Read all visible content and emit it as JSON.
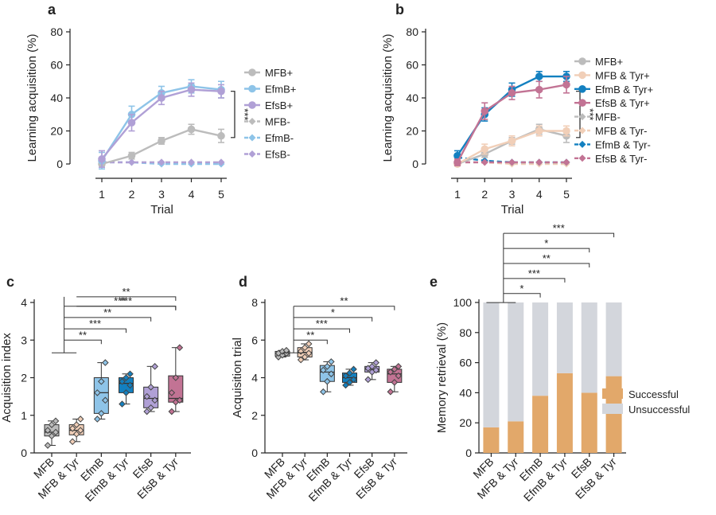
{
  "colors": {
    "gray": "#bcbcbc",
    "lightblue": "#8ec4e8",
    "lavender": "#b0a0d6",
    "peach": "#f1cfb8",
    "blue": "#1380c0",
    "mauve": "#c27394",
    "successful": "#e2a86a",
    "unsuccessful": "#d3d6dc"
  },
  "chart_data": [
    {
      "panel": "a",
      "type": "line",
      "xlabel": "Trial",
      "ylabel": "Learning acquisition (%)",
      "x": [
        1,
        2,
        3,
        4,
        5
      ],
      "xlim": [
        1,
        5
      ],
      "ylim": [
        0,
        80
      ],
      "yticks": [
        0,
        20,
        40,
        60,
        80
      ],
      "series": [
        {
          "name": "MFB+",
          "color": "gray",
          "dashed": false,
          "marker": "circle",
          "values": [
            0,
            5,
            14,
            21,
            17
          ],
          "err": [
            1,
            2,
            2,
            3,
            4
          ]
        },
        {
          "name": "EfmB+",
          "color": "lightblue",
          "dashed": false,
          "marker": "circle",
          "values": [
            2,
            30,
            43,
            47,
            45
          ],
          "err": [
            5,
            5,
            4,
            4,
            5
          ]
        },
        {
          "name": "EfsB+",
          "color": "lavender",
          "dashed": false,
          "marker": "circle",
          "values": [
            3,
            25,
            40,
            45,
            44
          ],
          "err": [
            5,
            5,
            4,
            4,
            4
          ]
        },
        {
          "name": "MFB-",
          "color": "gray",
          "dashed": true,
          "marker": "diamond",
          "values": [
            1,
            1,
            1,
            1,
            1
          ],
          "err": [
            0,
            0,
            0,
            0,
            0
          ]
        },
        {
          "name": "EfmB-",
          "color": "lightblue",
          "dashed": true,
          "marker": "diamond",
          "values": [
            1,
            1,
            0,
            0,
            0
          ],
          "err": [
            0,
            0,
            0,
            0,
            0
          ]
        },
        {
          "name": "EfsB-",
          "color": "lavender",
          "dashed": true,
          "marker": "diamond",
          "values": [
            1,
            1,
            1,
            1,
            1
          ],
          "err": [
            0,
            0,
            0,
            0,
            0
          ]
        }
      ],
      "significance": "***"
    },
    {
      "panel": "b",
      "type": "line",
      "xlabel": "Trial",
      "ylabel": "Learning acquisition (%)",
      "x": [
        1,
        2,
        3,
        4,
        5
      ],
      "xlim": [
        1,
        5
      ],
      "ylim": [
        0,
        80
      ],
      "yticks": [
        0,
        20,
        40,
        60,
        80
      ],
      "series": [
        {
          "name": "MFB+",
          "color": "gray",
          "dashed": false,
          "marker": "circle",
          "values": [
            0,
            6,
            14,
            21,
            17
          ],
          "err": [
            1,
            2,
            2,
            3,
            4
          ]
        },
        {
          "name": "MFB & Tyr+",
          "color": "peach",
          "dashed": false,
          "marker": "circle",
          "values": [
            0,
            9,
            14,
            20,
            20
          ],
          "err": [
            1,
            3,
            3,
            3,
            3
          ]
        },
        {
          "name": "EfmB & Tyr+",
          "color": "blue",
          "dashed": false,
          "marker": "circle",
          "values": [
            5,
            30,
            45,
            53,
            53
          ],
          "err": [
            3,
            4,
            4,
            3,
            3
          ]
        },
        {
          "name": "EfsB & Tyr+",
          "color": "mauve",
          "dashed": false,
          "marker": "circle",
          "values": [
            1,
            32,
            43,
            45,
            48
          ],
          "err": [
            2,
            5,
            4,
            5,
            5
          ]
        },
        {
          "name": "MFB-",
          "color": "gray",
          "dashed": true,
          "marker": "diamond",
          "values": [
            1,
            1,
            1,
            1,
            1
          ],
          "err": [
            0,
            0,
            0,
            0,
            0
          ]
        },
        {
          "name": "MFB & Tyr-",
          "color": "peach",
          "dashed": true,
          "marker": "diamond",
          "values": [
            1,
            1,
            0,
            0,
            0
          ],
          "err": [
            0,
            0,
            0,
            0,
            0
          ]
        },
        {
          "name": "EfmB & Tyr-",
          "color": "blue",
          "dashed": true,
          "marker": "diamond",
          "values": [
            4,
            2,
            1,
            1,
            1
          ],
          "err": [
            0,
            0,
            0,
            0,
            0
          ]
        },
        {
          "name": "EfsB & Tyr-",
          "color": "mauve",
          "dashed": true,
          "marker": "diamond",
          "values": [
            1,
            1,
            1,
            1,
            1
          ],
          "err": [
            0,
            0,
            0,
            0,
            0
          ]
        }
      ],
      "significance": "***"
    },
    {
      "panel": "c",
      "type": "box",
      "ylabel": "Acquisition index",
      "ylim": [
        0,
        4
      ],
      "yticks": [
        0,
        1,
        2,
        3,
        4
      ],
      "categories": [
        "MFB",
        "MFB & Tyr",
        "EfmB",
        "EfmB & Tyr",
        "EfsB",
        "EfsB & Tyr"
      ],
      "category_colors": [
        "gray",
        "peach",
        "lightblue",
        "blue",
        "lavender",
        "mauve"
      ],
      "boxes": [
        {
          "min": 0.2,
          "q1": 0.45,
          "median": 0.55,
          "q3": 0.75,
          "max": 0.85,
          "points": [
            0.2,
            0.45,
            0.55,
            0.6,
            0.75,
            0.85
          ]
        },
        {
          "min": 0.3,
          "q1": 0.48,
          "median": 0.6,
          "q3": 0.75,
          "max": 0.9,
          "points": [
            0.3,
            0.5,
            0.6,
            0.65,
            0.75,
            0.9
          ]
        },
        {
          "min": 0.9,
          "q1": 1.05,
          "median": 1.6,
          "q3": 2.0,
          "max": 2.4,
          "points": [
            0.9,
            1.05,
            1.4,
            1.6,
            1.9,
            2.4
          ]
        },
        {
          "min": 1.3,
          "q1": 1.6,
          "median": 1.85,
          "q3": 2.0,
          "max": 2.1,
          "points": [
            1.3,
            1.6,
            1.8,
            1.9,
            2.0,
            2.1
          ]
        },
        {
          "min": 1.1,
          "q1": 1.2,
          "median": 1.45,
          "q3": 1.75,
          "max": 2.3,
          "points": [
            1.1,
            1.2,
            1.4,
            1.5,
            1.75,
            2.3
          ]
        },
        {
          "min": 1.1,
          "q1": 1.35,
          "median": 1.45,
          "q3": 2.05,
          "max": 2.8,
          "points": [
            1.1,
            1.35,
            1.4,
            1.6,
            2.0,
            2.8
          ]
        }
      ],
      "comparisons": [
        {
          "from": "MFB",
          "to": "EfmB",
          "label": "**",
          "level": 3.0
        },
        {
          "from": "MFB",
          "to": "EfmB & Tyr",
          "label": "***",
          "level": 3.3
        },
        {
          "from": "MFB",
          "to": "EfsB",
          "label": "**",
          "level": 3.6
        },
        {
          "from": "MFB",
          "to": "EfsB & Tyr",
          "label": "***",
          "level": 3.9
        },
        {
          "from": "MFB & Tyr",
          "to": "EfsB & Tyr",
          "label": "**",
          "level": 4.15
        },
        {
          "from": "MFB & Tyr",
          "to": "EfsB & Tyr",
          "label": "***",
          "level": 3.9
        }
      ]
    },
    {
      "panel": "d",
      "type": "box",
      "ylabel": "Acquisition trial",
      "ylim": [
        0,
        8
      ],
      "yticks": [
        0,
        2,
        4,
        6,
        8
      ],
      "categories": [
        "MFB",
        "MFB & Tyr",
        "EfmB",
        "EfmB & Tyr",
        "EfsB",
        "EfsB & Tyr"
      ],
      "category_colors": [
        "gray",
        "peach",
        "lightblue",
        "blue",
        "lavender",
        "mauve"
      ],
      "boxes": [
        {
          "min": 5.1,
          "q1": 5.15,
          "median": 5.3,
          "q3": 5.4,
          "max": 5.45,
          "points": [
            5.1,
            5.2,
            5.3,
            5.3,
            5.4,
            5.45
          ]
        },
        {
          "min": 4.95,
          "q1": 5.1,
          "median": 5.35,
          "q3": 5.6,
          "max": 5.8,
          "points": [
            4.95,
            5.1,
            5.3,
            5.4,
            5.6,
            5.8
          ]
        },
        {
          "min": 3.25,
          "q1": 3.8,
          "median": 4.3,
          "q3": 4.65,
          "max": 4.85,
          "points": [
            3.25,
            3.8,
            4.2,
            4.4,
            4.6,
            4.85
          ]
        },
        {
          "min": 3.6,
          "q1": 3.75,
          "median": 4.0,
          "q3": 4.25,
          "max": 4.45,
          "points": [
            3.6,
            3.75,
            3.9,
            4.1,
            4.25,
            4.45
          ]
        },
        {
          "min": 3.9,
          "q1": 4.3,
          "median": 4.45,
          "q3": 4.6,
          "max": 4.8,
          "points": [
            3.9,
            4.3,
            4.4,
            4.5,
            4.6,
            4.8
          ]
        },
        {
          "min": 3.25,
          "q1": 3.75,
          "median": 4.2,
          "q3": 4.45,
          "max": 4.6,
          "points": [
            3.25,
            3.75,
            4.1,
            4.3,
            4.45,
            4.6
          ]
        }
      ],
      "comparisons": [
        {
          "from": "MFB",
          "to": "EfmB",
          "label": "**",
          "level": 6.0
        },
        {
          "from": "MFB",
          "to": "EfmB & Tyr",
          "label": "***",
          "level": 6.6
        },
        {
          "from": "MFB",
          "to": "EfsB",
          "label": "*",
          "level": 7.2
        },
        {
          "from": "MFB",
          "to": "EfsB & Tyr",
          "label": "**",
          "level": 7.8
        }
      ]
    },
    {
      "panel": "e",
      "type": "stacked_bar",
      "ylabel": "Memory retrieval (%)",
      "ylim": [
        0,
        100
      ],
      "yticks": [
        0,
        20,
        40,
        60,
        80,
        100
      ],
      "categories": [
        "MFB",
        "MFB & Tyr",
        "EfmB",
        "EfmB & Tyr",
        "EfsB",
        "EfsB & Tyr"
      ],
      "series": [
        {
          "name": "Successful",
          "color": "successful",
          "values": [
            17,
            21,
            38,
            53,
            40,
            51
          ]
        },
        {
          "name": "Unsuccessful",
          "color": "unsuccessful",
          "values": [
            83,
            79,
            62,
            47,
            60,
            49
          ]
        }
      ],
      "comparisons": [
        {
          "from": "MFB & Tyr",
          "to": "EfmB",
          "label": "*",
          "level": 107
        },
        {
          "from": "MFB",
          "to": "EfmB & Tyr",
          "label": "***",
          "level": 117
        },
        {
          "from": "MFB",
          "to": "EfsB",
          "label": "**",
          "level": 127
        },
        {
          "from": "MFB & Tyr",
          "to": "EfsB",
          "label": "*",
          "level": 137
        },
        {
          "from": "MFB",
          "to": "EfsB & Tyr",
          "label": "***",
          "level": 147
        }
      ]
    }
  ]
}
